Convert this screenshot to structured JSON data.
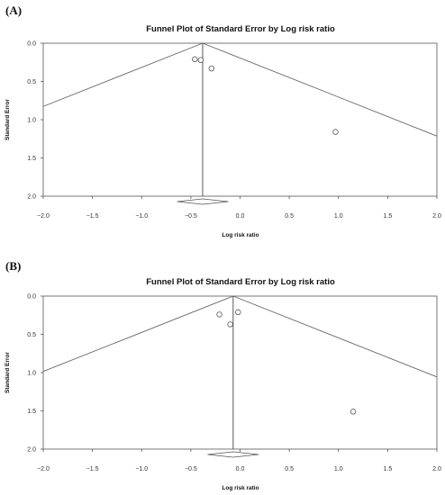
{
  "chart_data": [
    {
      "type": "scatter",
      "panel_label": "(A)",
      "title": "Funnel Plot of Standard Error by Log risk ratio",
      "xlabel": "Log risk ratio",
      "ylabel": "Standard Error",
      "xlim": [
        -2.0,
        2.0
      ],
      "ylim": [
        0.0,
        2.0
      ],
      "y_inverted": true,
      "x_ticks": [
        "-2.0",
        "-1.5",
        "-1.0",
        "-0.5",
        "0.0",
        "0.5",
        "1.0",
        "1.5",
        "2.0"
      ],
      "y_ticks": [
        "0.0",
        "0.5",
        "1.0",
        "1.5",
        "2.0"
      ],
      "summary_effect": -0.38,
      "points": [
        {
          "x": -0.46,
          "y": 0.21
        },
        {
          "x": -0.4,
          "y": 0.22
        },
        {
          "x": -0.29,
          "y": 0.33
        },
        {
          "x": 0.97,
          "y": 1.16
        }
      ]
    },
    {
      "type": "scatter",
      "panel_label": "(B)",
      "title": "Funnel Plot of Standard Error by Log risk ratio",
      "xlabel": "Log risk ratio",
      "ylabel": "Standard Error",
      "xlim": [
        -2.0,
        2.0
      ],
      "ylim": [
        0.0,
        2.0
      ],
      "y_inverted": true,
      "x_ticks": [
        "-2.0",
        "-1.5",
        "-1.0",
        "-0.5",
        "0.0",
        "0.5",
        "1.0",
        "1.5",
        "2.0"
      ],
      "y_ticks": [
        "0.0",
        "0.5",
        "1.0",
        "1.5",
        "2.0"
      ],
      "summary_effect": -0.07,
      "points": [
        {
          "x": -0.21,
          "y": 0.24
        },
        {
          "x": -0.02,
          "y": 0.21
        },
        {
          "x": -0.1,
          "y": 0.37
        },
        {
          "x": 1.15,
          "y": 1.51
        }
      ]
    }
  ]
}
